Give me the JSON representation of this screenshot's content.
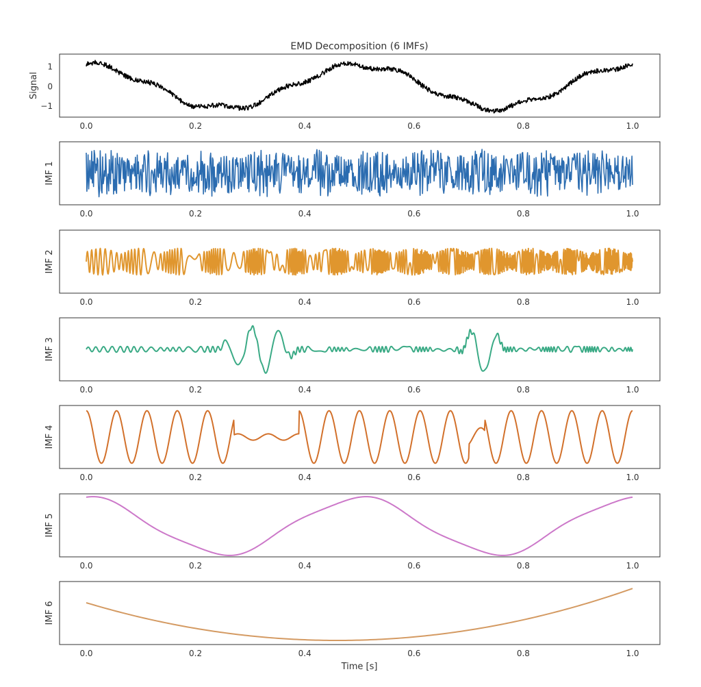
{
  "chart_data": {
    "type": "line",
    "title": "EMD Decomposition (6 IMFs)",
    "xlabel": "Time [s]",
    "xlim": [
      0.0,
      1.0
    ],
    "x_ticks": [
      "0.0",
      "0.2",
      "0.4",
      "0.6",
      "0.8",
      "1.0"
    ],
    "x_tick_values": [
      0.0,
      0.2,
      0.4,
      0.6,
      0.8,
      1.0
    ],
    "grid": false,
    "panels": [
      {
        "ylabel": "Signal",
        "color": "#000000",
        "ylim": [
          -1.55,
          1.65
        ],
        "y_ticks": [
          "1",
          "0",
          "−1"
        ],
        "y_tick_values": [
          1,
          0,
          -1
        ],
        "model": {
          "kind": "sum",
          "components": [
            {
              "kind": "sine",
              "amp": 1.1,
              "freq": 2.0,
              "phase": 1.5708
            },
            {
              "kind": "sine",
              "amp": 0.15,
              "freq": 9.0,
              "phase": 0.3
            },
            {
              "kind": "noise",
              "amp": 0.06,
              "seed": 11
            }
          ]
        },
        "samples": 1100
      },
      {
        "ylabel": "IMF 1",
        "color": "#2b6cb0",
        "ylim": [
          -1.3,
          1.3
        ],
        "y_ticks": [],
        "model": {
          "kind": "noise",
          "amp": 0.45,
          "seed": 7,
          "burst": 1.0
        },
        "samples": 900
      },
      {
        "ylabel": "IMF 2",
        "color": "#e0962e",
        "ylim": [
          -1.3,
          1.3
        ],
        "y_ticks": [],
        "model": {
          "kind": "modsine",
          "amp": 0.55,
          "freq": 120.0,
          "modfreq": 7.0,
          "seed": 3,
          "jitter": 0.45
        },
        "samples": 1400
      },
      {
        "ylabel": "IMF 3",
        "color": "#3aaa85",
        "ylim": [
          -1.3,
          1.3
        ],
        "y_ticks": [],
        "model": {
          "kind": "modsine",
          "amp": 0.12,
          "freq": 70.0,
          "modfreq": 3.0,
          "seed": 5,
          "jitter": 0.2,
          "bursts": [
            [
              0.24,
              0.39,
              0.95,
              20.0
            ],
            [
              0.68,
              0.77,
              1.0,
              20.0
            ]
          ]
        },
        "samples": 1200
      },
      {
        "ylabel": "IMF 4",
        "color": "#d2702a",
        "ylim": [
          -1.2,
          1.2
        ],
        "y_ticks": [],
        "model": {
          "kind": "sine",
          "amp": 1.0,
          "freq": 18.0,
          "phase": 1.5708,
          "quiet": [
            [
              0.27,
              0.39,
              0.12
            ],
            [
              0.7,
              0.73,
              0.35
            ]
          ]
        },
        "samples": 1000
      },
      {
        "ylabel": "IMF 5",
        "color": "#cc78c9",
        "ylim": [
          -1.1,
          1.15
        ],
        "y_ticks": [],
        "model": {
          "kind": "sum",
          "components": [
            {
              "kind": "sine",
              "amp": 1.0,
              "freq": 2.0,
              "phase": 1.5708
            },
            {
              "kind": "sine",
              "amp": 0.08,
              "freq": 6.0,
              "phase": 0.4
            }
          ]
        },
        "samples": 400
      },
      {
        "ylabel": "IMF 6",
        "color": "#d49a62",
        "ylim": [
          -1.15,
          1.15
        ],
        "y_ticks": [],
        "model": {
          "kind": "quad",
          "x0": 0.46,
          "ymin": -1.0,
          "a": 6.5
        },
        "samples": 200
      }
    ]
  }
}
